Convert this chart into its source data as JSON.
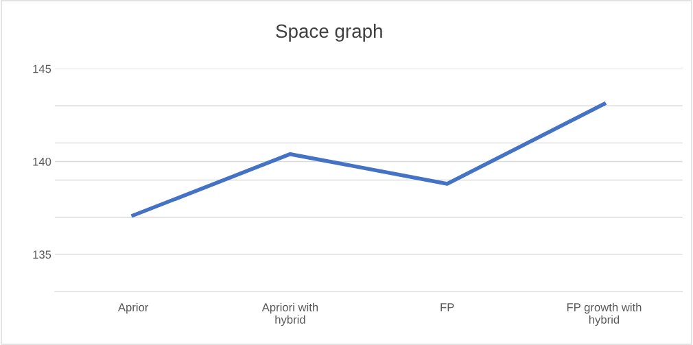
{
  "chart_data": {
    "type": "line",
    "title": "Space graph",
    "categories": [
      "Aprior",
      "Apriori with\nhybrid",
      "FP",
      "FP growth with\nhybrid"
    ],
    "series": [
      {
        "color": "#4472c4",
        "values": [
          137.1,
          140.4,
          138.8,
          143.1
        ]
      }
    ],
    "ylim": [
      133,
      145
    ],
    "yticks": [
      {
        "value": 133,
        "label": null
      },
      135,
      {
        "value": 137,
        "label": null
      },
      {
        "value": 139,
        "label": null
      },
      140,
      {
        "value": 141,
        "label": null
      },
      {
        "value": 143,
        "label": null
      },
      145
    ],
    "grid": "y",
    "legend": false,
    "marker": "none",
    "line_style": "solid"
  }
}
